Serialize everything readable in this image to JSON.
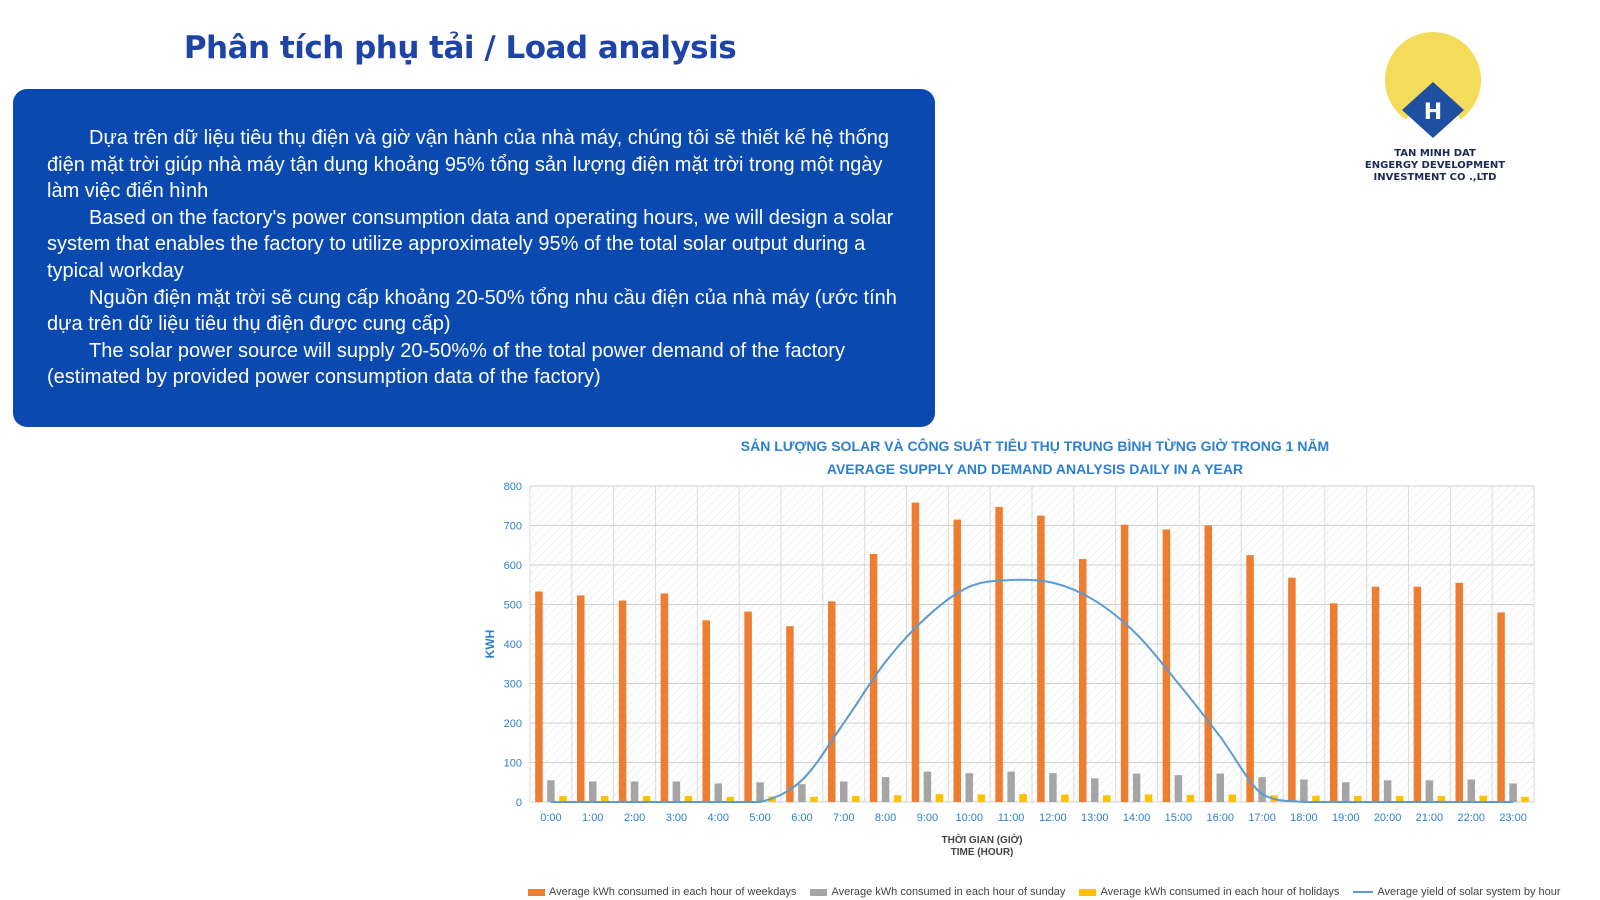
{
  "page": {
    "title": "Phân tích phụ tải / Load analysis",
    "paragraphs": [
      "Dựa trên dữ liệu tiêu thụ điện và giờ vận hành của nhà máy, chúng tôi sẽ thiết kế hệ thống điện mặt trời giúp nhà máy tận dụng khoảng 95% tổng sản lượng điện mặt trời trong một ngày làm việc điển hình",
      "Based on the factory's power consumption data and operating hours, we will design a solar system that enables the factory to utilize approximately 95% of the total solar output during a typical workday",
      "Nguồn điện mặt trời sẽ cung cấp khoảng 20-50% tổng nhu cầu điện của nhà máy (ước tính dựa trên dữ liệu tiêu thụ điện được cung cấp)",
      "The solar power source will supply 20-50%% of the total power demand of the factory (estimated by provided power consumption data of the factory)"
    ]
  },
  "logo": {
    "line1": "TAN MINH DAT",
    "line2": "ENGERGY DEVELOPMENT",
    "line3": "INVESTMENT CO .,LTD",
    "mark_letter": "H",
    "sun_color": "#f3dc5a",
    "house_color": "#1f4fa0"
  },
  "chart_data": {
    "type": "bar",
    "title": "SẢN LƯỢNG SOLAR VÀ CÔNG SUẤT TIÊU THỤ TRUNG BÌNH TỪNG GIỜ TRONG 1 NĂM",
    "subtitle": "AVERAGE SUPPLY AND DEMAND ANALYSIS DAILY IN A YEAR",
    "xlabel": "THỜI GIAN (GIỜ)",
    "xlabel2": "TIME (HOUR)",
    "ylabel": "KWH",
    "ylim": [
      0,
      800
    ],
    "yticks": [
      "0",
      "100",
      "200",
      "300",
      "400",
      "500",
      "600",
      "700",
      "800"
    ],
    "grid": true,
    "legend_position": "bottom",
    "categories": [
      "0:00",
      "1:00",
      "2:00",
      "3:00",
      "4:00",
      "5:00",
      "6:00",
      "7:00",
      "8:00",
      "9:00",
      "10:00",
      "11:00",
      "12:00",
      "13:00",
      "14:00",
      "15:00",
      "16:00",
      "17:00",
      "18:00",
      "19:00",
      "20:00",
      "21:00",
      "22:00",
      "23:00"
    ],
    "series": [
      {
        "name": "Average kWh consumed in each hour of weekdays",
        "kind": "bar",
        "color": "#ed7d31",
        "values": [
          533,
          523,
          510,
          528,
          460,
          482,
          445,
          508,
          628,
          758,
          715,
          747,
          725,
          615,
          702,
          690,
          700,
          625,
          568,
          503,
          545,
          545,
          555,
          480
        ]
      },
      {
        "name": "Average kWh consumed in each hour of sunday",
        "kind": "bar",
        "color": "#a5a5a5",
        "values": [
          55,
          52,
          52,
          52,
          47,
          50,
          45,
          52,
          63,
          77,
          73,
          77,
          73,
          60,
          72,
          68,
          72,
          63,
          57,
          50,
          55,
          55,
          57,
          47
        ]
      },
      {
        "name": "Average kWh consumed in each hour of holidays",
        "kind": "bar",
        "color": "#ffc000",
        "values": [
          15,
          15,
          15,
          15,
          13,
          14,
          13,
          15,
          17,
          20,
          19,
          20,
          19,
          17,
          19,
          18,
          19,
          17,
          16,
          15,
          15,
          15,
          16,
          13
        ]
      },
      {
        "name": "Average yield of solar system by hour",
        "kind": "line",
        "color": "#5b9bd5",
        "values": [
          0,
          0,
          0,
          0,
          0,
          0,
          55,
          200,
          355,
          470,
          545,
          562,
          555,
          510,
          425,
          300,
          165,
          20,
          0,
          0,
          0,
          0,
          0,
          0
        ]
      }
    ]
  }
}
